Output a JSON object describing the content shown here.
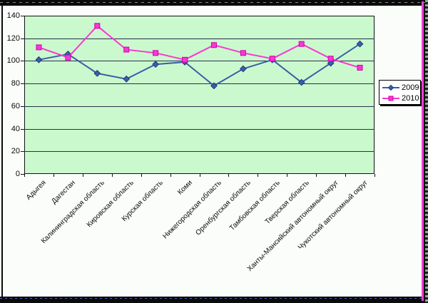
{
  "window": {
    "frame": {
      "surround_color": "#0b0b0b",
      "panel_color": "#fafdfa",
      "right_stripe_color": "#ef3fd8",
      "bottom_dash_color": "#4a66c8",
      "top_dash_color": "#8a8a8a"
    }
  },
  "chart_data": {
    "type": "line",
    "categories": [
      "Адыгея",
      "Дагестан",
      "Калининградская область",
      "Кировская область",
      "Курская область",
      "Коми",
      "Нижегородская область",
      "Оренбургская область",
      "Тамбовская область",
      "Тверская область",
      "Ханты-Мансийский автономный округ",
      "Чукотский автономный округ"
    ],
    "series": [
      {
        "name": "2009",
        "color": "#3a5fa8",
        "marker": "diamond",
        "marker_edge": "#1c3d7a",
        "values": [
          101,
          106,
          89,
          84,
          97,
          99,
          78,
          93,
          101,
          81,
          98,
          115
        ]
      },
      {
        "name": "2010",
        "color": "#f838d2",
        "marker": "square",
        "marker_edge": "#cf00ad",
        "values": [
          112,
          103,
          131,
          110,
          107,
          101,
          114,
          107,
          102,
          115,
          102,
          94
        ]
      }
    ],
    "xlabel": "",
    "ylabel": "",
    "ylim": [
      0,
      140
    ],
    "yticks": [
      0,
      20,
      40,
      60,
      80,
      100,
      120,
      140
    ],
    "grid": true,
    "gridline_color": "#28304a",
    "plot_bg": "#cbf9ce",
    "legend_position": "right"
  },
  "legend": {
    "items": [
      "2009",
      "2010"
    ]
  }
}
